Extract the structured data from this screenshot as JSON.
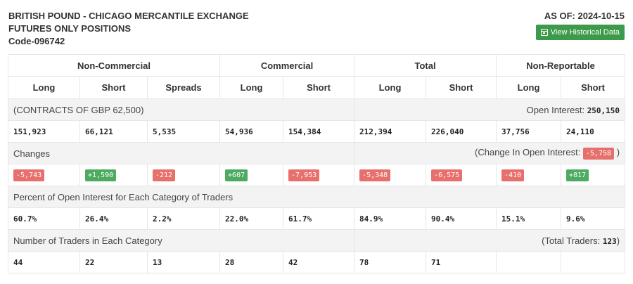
{
  "header": {
    "title_line1": "BRITISH POUND - CHICAGO MERCANTILE EXCHANGE",
    "title_line2": "FUTURES ONLY POSITIONS",
    "code": "Code-096742",
    "as_of": "AS OF: 2024-10-15",
    "button_label": "View Historical Data",
    "button_icon": "calendar-icon",
    "button_color": "#3d9a4a"
  },
  "groups": [
    "Non-Commercial",
    "Commercial",
    "Total",
    "Non-Reportable"
  ],
  "columns": [
    "Long",
    "Short",
    "Spreads",
    "Long",
    "Short",
    "Long",
    "Short",
    "Long",
    "Short"
  ],
  "contracts": {
    "label": "(CONTRACTS OF GBP 62,500)",
    "oi_label": "Open Interest:",
    "oi_value": "250,150",
    "values": [
      "151,923",
      "66,121",
      "5,535",
      "54,936",
      "154,384",
      "212,394",
      "226,040",
      "37,756",
      "24,110"
    ]
  },
  "changes": {
    "label": "Changes",
    "oi_prefix": "(Change In Open Interest:",
    "oi_value": "-5,758",
    "oi_suffix": ")",
    "values": [
      "-5,743",
      "+1,590",
      "-212",
      "+607",
      "-7,953",
      "-5,348",
      "-6,575",
      "-410",
      "+817"
    ],
    "colors": {
      "negative": "#e8706c",
      "positive": "#4dab61"
    }
  },
  "percent": {
    "label": "Percent of Open Interest for Each Category of Traders",
    "values": [
      "60.7%",
      "26.4%",
      "2.2%",
      "22.0%",
      "61.7%",
      "84.9%",
      "90.4%",
      "15.1%",
      "9.6%"
    ]
  },
  "traders": {
    "label": "Number of Traders in Each Category",
    "total_prefix": "(Total Traders:",
    "total_value": "123",
    "total_suffix": ")",
    "values": [
      "44",
      "22",
      "13",
      "28",
      "42",
      "78",
      "71",
      "",
      ""
    ]
  }
}
